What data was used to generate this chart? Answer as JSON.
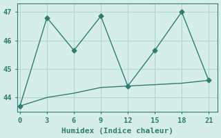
{
  "x": [
    0,
    3,
    6,
    9,
    12,
    15,
    18,
    21
  ],
  "y_zigzag": [
    43.7,
    46.8,
    45.65,
    46.85,
    44.4,
    45.65,
    47.0,
    44.6
  ],
  "y_smooth": [
    43.7,
    44.0,
    44.15,
    44.35,
    44.4,
    44.45,
    44.5,
    44.6
  ],
  "line_color": "#2e7d6e",
  "bg_color": "#d6eeea",
  "grid_color": "#b0d8d0",
  "xlabel": "Humidex (Indice chaleur)",
  "ylim": [
    43.5,
    47.3
  ],
  "xlim": [
    -0.3,
    22
  ],
  "yticks": [
    44,
    45,
    46,
    47
  ],
  "xticks": [
    0,
    3,
    6,
    9,
    12,
    15,
    18,
    21
  ],
  "marker": "D",
  "markersize": 3.5,
  "linewidth": 1.0,
  "smooth_linewidth": 1.0,
  "xlabel_fontsize": 8,
  "tick_fontsize": 7.5
}
